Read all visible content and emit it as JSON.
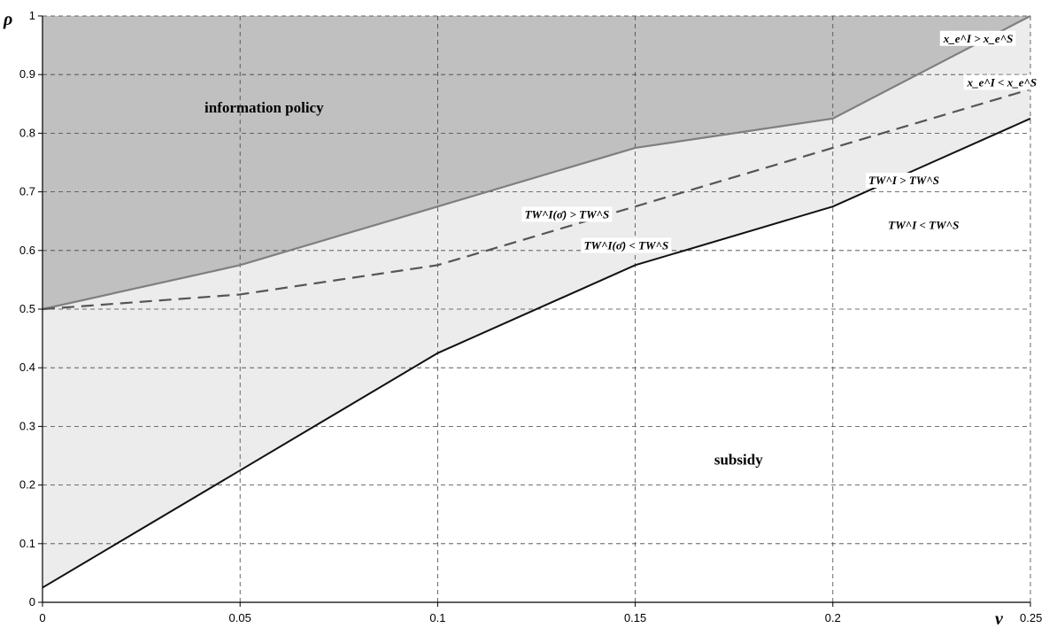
{
  "chart_data": {
    "type": "area",
    "xlabel": "ν",
    "ylabel": "ρ",
    "xlim": [
      0,
      0.25
    ],
    "ylim": [
      0,
      1
    ],
    "grid": true,
    "x_ticks": [
      "0",
      "0.05",
      "0.1",
      "0.15",
      "0.2",
      "0.25"
    ],
    "y_ticks": [
      "0",
      "0.1",
      "0.2",
      "0.3",
      "0.4",
      "0.5",
      "0.6",
      "0.7",
      "0.8",
      "0.9",
      "1"
    ],
    "x": [
      0,
      0.05,
      0.1,
      0.15,
      0.2,
      0.25
    ],
    "series": [
      {
        "style": "solid-gray",
        "values": [
          0.5,
          0.575,
          0.675,
          0.775,
          0.825,
          1.0
        ]
      },
      {
        "style": "dashed",
        "values": [
          0.5,
          0.525,
          0.575,
          0.675,
          0.775,
          0.875
        ]
      },
      {
        "style": "solid-black",
        "values": [
          0.025,
          0.225,
          0.425,
          0.575,
          0.675,
          0.825
        ]
      }
    ],
    "regions": [
      {
        "label": "information policy",
        "color": "#c0c0c0"
      },
      {
        "label": "",
        "color": "#ececec"
      },
      {
        "label": "subsidy",
        "color": "#ffffff"
      }
    ],
    "annotations": [
      {
        "text": "x_e^I > x_e^S",
        "x": 0.228,
        "y": 0.955
      },
      {
        "text": "x_e^I < x_e^S",
        "x": 0.234,
        "y": 0.88
      },
      {
        "text": "TW^I > TW^S",
        "x": 0.209,
        "y": 0.713
      },
      {
        "text": "TW^I < TW^S",
        "x": 0.214,
        "y": 0.637
      },
      {
        "text": "TW^I(σ̄) > TW^S",
        "x": 0.122,
        "y": 0.655
      },
      {
        "text": "TW^I(σ̄) < TW^S",
        "x": 0.137,
        "y": 0.602
      }
    ],
    "region_labels": [
      {
        "text": "information policy",
        "x": 0.041,
        "y": 0.835
      },
      {
        "text": "subsidy",
        "x": 0.17,
        "y": 0.235
      }
    ]
  }
}
